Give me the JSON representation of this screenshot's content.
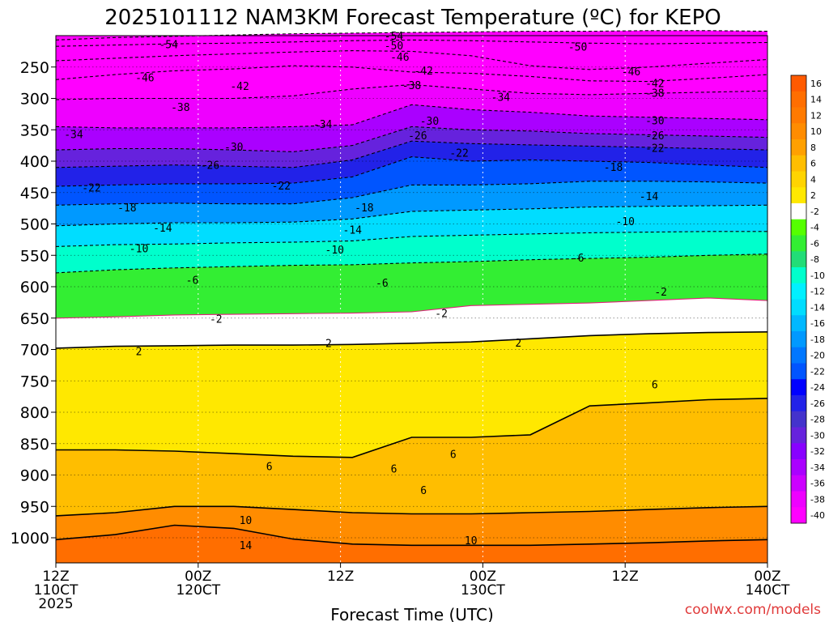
{
  "chart_data": {
    "type": "heatmap",
    "title": "2025101112 NAM3KM Forecast Temperature (ºC) for KEPO",
    "xlabel": "Forecast Time (UTC)",
    "ylabel": "",
    "credit": "coolwx.com/models",
    "x_ticks": [
      {
        "hour": 0,
        "l1": "12Z",
        "l2": "110CT",
        "l3": "2025"
      },
      {
        "hour": 12,
        "l1": "00Z",
        "l2": "120CT",
        "l3": ""
      },
      {
        "hour": 24,
        "l1": "12Z",
        "l2": "",
        "l3": ""
      },
      {
        "hour": 36,
        "l1": "00Z",
        "l2": "130CT",
        "l3": ""
      },
      {
        "hour": 48,
        "l1": "12Z",
        "l2": "",
        "l3": ""
      },
      {
        "hour": 60,
        "l1": "00Z",
        "l2": "140CT",
        "l3": ""
      }
    ],
    "x_range_hours": [
      0,
      60
    ],
    "pressure_levels": [
      250,
      300,
      350,
      400,
      450,
      500,
      550,
      600,
      650,
      700,
      750,
      800,
      850,
      900,
      950,
      1000
    ],
    "y_range_hpa": [
      200,
      1040
    ],
    "colorbar": {
      "labels": [
        "16",
        "14",
        "12",
        "10",
        "8",
        "6",
        "4",
        "2",
        "-2",
        "-4",
        "-6",
        "-8",
        "-10",
        "-12",
        "-14",
        "-16",
        "-18",
        "-20",
        "-22",
        "-24",
        "-26",
        "-28",
        "-30",
        "-32",
        "-34",
        "-36",
        "-38",
        "-40"
      ],
      "colors": [
        "#ff5a00",
        "#ff6e00",
        "#ff7a00",
        "#ff8c00",
        "#ffa000",
        "#ffbe00",
        "#ffd400",
        "#ffe800",
        "#ffffff",
        "#55ff00",
        "#33ee33",
        "#22dd77",
        "#00ffcc",
        "#00f0ff",
        "#00ddff",
        "#00b8ff",
        "#0099ff",
        "#0077ff",
        "#0055ff",
        "#0000ff",
        "#2222e8",
        "#4433cc",
        "#6622dd",
        "#8800ff",
        "#aa00ff",
        "#cc00ff",
        "#ee00ff",
        "#ff00ff"
      ]
    },
    "bands": [
      {
        "temp": -54,
        "p": [
          207,
          203,
          201,
          199,
          197,
          196,
          195,
          194,
          193,
          193,
          192,
          192,
          193
        ]
      },
      {
        "temp": -50,
        "p": [
          217,
          215,
          213,
          212,
          210,
          208,
          207,
          208,
          210,
          212,
          213,
          212,
          211
        ]
      },
      {
        "temp": -46,
        "p": [
          240,
          236,
          232,
          229,
          226,
          224,
          225,
          232,
          248,
          254,
          250,
          244,
          238
        ]
      },
      {
        "temp": -42,
        "p": [
          270,
          262,
          256,
          253,
          248,
          250,
          258,
          260,
          265,
          272,
          273,
          268,
          262
        ]
      },
      {
        "temp": -38,
        "p": [
          302,
          300,
          300,
          300,
          296,
          285,
          278,
          285,
          292,
          294,
          292,
          290,
          288
        ]
      },
      {
        "temp": -34,
        "p": [
          345,
          347,
          347,
          347,
          345,
          342,
          310,
          318,
          322,
          328,
          330,
          332,
          334
        ]
      },
      {
        "temp": -30,
        "p": [
          382,
          380,
          380,
          382,
          385,
          375,
          345,
          350,
          352,
          356,
          358,
          360,
          362
        ]
      },
      {
        "temp": -26,
        "p": [
          410,
          408,
          406,
          408,
          410,
          398,
          368,
          372,
          374,
          376,
          378,
          380,
          382
        ]
      },
      {
        "temp": -22,
        "p": [
          440,
          438,
          436,
          436,
          435,
          425,
          393,
          400,
          398,
          400,
          402,
          406,
          410
        ]
      },
      {
        "temp": -18,
        "p": [
          470,
          468,
          467,
          468,
          468,
          458,
          438,
          438,
          436,
          432,
          432,
          433,
          435
        ]
      },
      {
        "temp": -14,
        "p": [
          503,
          500,
          498,
          498,
          497,
          492,
          480,
          478,
          476,
          473,
          472,
          471,
          470
        ]
      },
      {
        "temp": -10,
        "p": [
          536,
          533,
          532,
          530,
          529,
          527,
          520,
          518,
          516,
          514,
          513,
          512,
          512
        ]
      },
      {
        "temp": -6,
        "p": [
          578,
          573,
          570,
          568,
          566,
          565,
          562,
          560,
          557,
          555,
          553,
          550,
          548
        ]
      },
      {
        "temp": -2,
        "p": [
          650,
          648,
          645,
          644,
          643,
          642,
          640,
          630,
          628,
          626,
          622,
          618,
          622
        ]
      },
      {
        "temp": 2,
        "p": [
          698,
          695,
          694,
          693,
          693,
          692,
          690,
          688,
          683,
          678,
          675,
          673,
          672
        ]
      },
      {
        "temp": 6,
        "p": [
          860,
          860,
          862,
          866,
          870,
          872,
          840,
          840,
          836,
          790,
          785,
          780,
          778
        ]
      },
      {
        "temp": 10,
        "p": [
          965,
          960,
          950,
          950,
          955,
          960,
          962,
          962,
          960,
          958,
          955,
          952,
          950
        ]
      },
      {
        "temp": 14,
        "p": [
          1003,
          995,
          980,
          985,
          1002,
          1010,
          1012,
          1012,
          1012,
          1010,
          1008,
          1005,
          1003
        ]
      },
      {
        "temp": 18,
        "p": [
          1040,
          1040,
          1040,
          1040,
          1040,
          1040,
          1040,
          1040,
          1040,
          1040,
          1040,
          1040,
          1040
        ]
      }
    ],
    "band_hours": [
      0,
      5,
      10,
      15,
      20,
      25,
      30,
      35,
      40,
      45,
      50,
      55,
      60
    ],
    "contour_labels": [
      {
        "t": "-54",
        "h": 9.5,
        "p": 215
      },
      {
        "t": "-54",
        "h": 28.5,
        "p": 201
      },
      {
        "t": "-50",
        "h": 28.5,
        "p": 217
      },
      {
        "t": "-50",
        "h": 44,
        "p": 219
      },
      {
        "t": "-46",
        "h": 7.5,
        "p": 268
      },
      {
        "t": "-46",
        "h": 29,
        "p": 235
      },
      {
        "t": "-46",
        "h": 48.5,
        "p": 258
      },
      {
        "t": "-42",
        "h": 15.5,
        "p": 281
      },
      {
        "t": "-42",
        "h": 31,
        "p": 257
      },
      {
        "t": "-42",
        "h": 50.5,
        "p": 277
      },
      {
        "t": "-38",
        "h": 10.5,
        "p": 315
      },
      {
        "t": "-38",
        "h": 30,
        "p": 280
      },
      {
        "t": "-38",
        "h": 50.5,
        "p": 292
      },
      {
        "t": "-34",
        "h": 1.5,
        "p": 358
      },
      {
        "t": "-34",
        "h": 22.5,
        "p": 342
      },
      {
        "t": "-34",
        "h": 37.5,
        "p": 299
      },
      {
        "t": "-30",
        "h": 15,
        "p": 378
      },
      {
        "t": "-30",
        "h": 31.5,
        "p": 337
      },
      {
        "t": "-30",
        "h": 50.5,
        "p": 336
      },
      {
        "t": "-26",
        "h": 13,
        "p": 407
      },
      {
        "t": "-26",
        "h": 30.5,
        "p": 360
      },
      {
        "t": "-26",
        "h": 50.5,
        "p": 360
      },
      {
        "t": "-22",
        "h": 3,
        "p": 443
      },
      {
        "t": "-22",
        "h": 19,
        "p": 440
      },
      {
        "t": "-22",
        "h": 34,
        "p": 388
      },
      {
        "t": "-22",
        "h": 50.5,
        "p": 380
      },
      {
        "t": "-18",
        "h": 6,
        "p": 475
      },
      {
        "t": "-18",
        "h": 26,
        "p": 475
      },
      {
        "t": "-18",
        "h": 47,
        "p": 410
      },
      {
        "t": "-14",
        "h": 9,
        "p": 507
      },
      {
        "t": "-14",
        "h": 25,
        "p": 510
      },
      {
        "t": "-14",
        "h": 50,
        "p": 457
      },
      {
        "t": "-10",
        "h": 7,
        "p": 540
      },
      {
        "t": "-10",
        "h": 23.5,
        "p": 542
      },
      {
        "t": "-10",
        "h": 48,
        "p": 497
      },
      {
        "t": "-6",
        "h": 11.5,
        "p": 590
      },
      {
        "t": "-6",
        "h": 27.5,
        "p": 595
      },
      {
        "t": "-6",
        "h": 44,
        "p": 555
      },
      {
        "t": "-2",
        "h": 13.5,
        "p": 652
      },
      {
        "t": "-2",
        "h": 32.5,
        "p": 643
      },
      {
        "t": "-2",
        "h": 51,
        "p": 609
      },
      {
        "t": "2",
        "h": 7,
        "p": 704
      },
      {
        "t": "2",
        "h": 23,
        "p": 691
      },
      {
        "t": "2",
        "h": 39,
        "p": 690
      },
      {
        "t": "6",
        "h": 18,
        "p": 887
      },
      {
        "t": "6",
        "h": 28.5,
        "p": 891
      },
      {
        "t": "6",
        "h": 31,
        "p": 925
      },
      {
        "t": "6",
        "h": 33.5,
        "p": 868
      },
      {
        "t": "6",
        "h": 50.5,
        "p": 757
      },
      {
        "t": "10",
        "h": 16,
        "p": 973
      },
      {
        "t": "10",
        "h": 35,
        "p": 1005
      },
      {
        "t": "14",
        "h": 16,
        "p": 1013
      }
    ]
  }
}
